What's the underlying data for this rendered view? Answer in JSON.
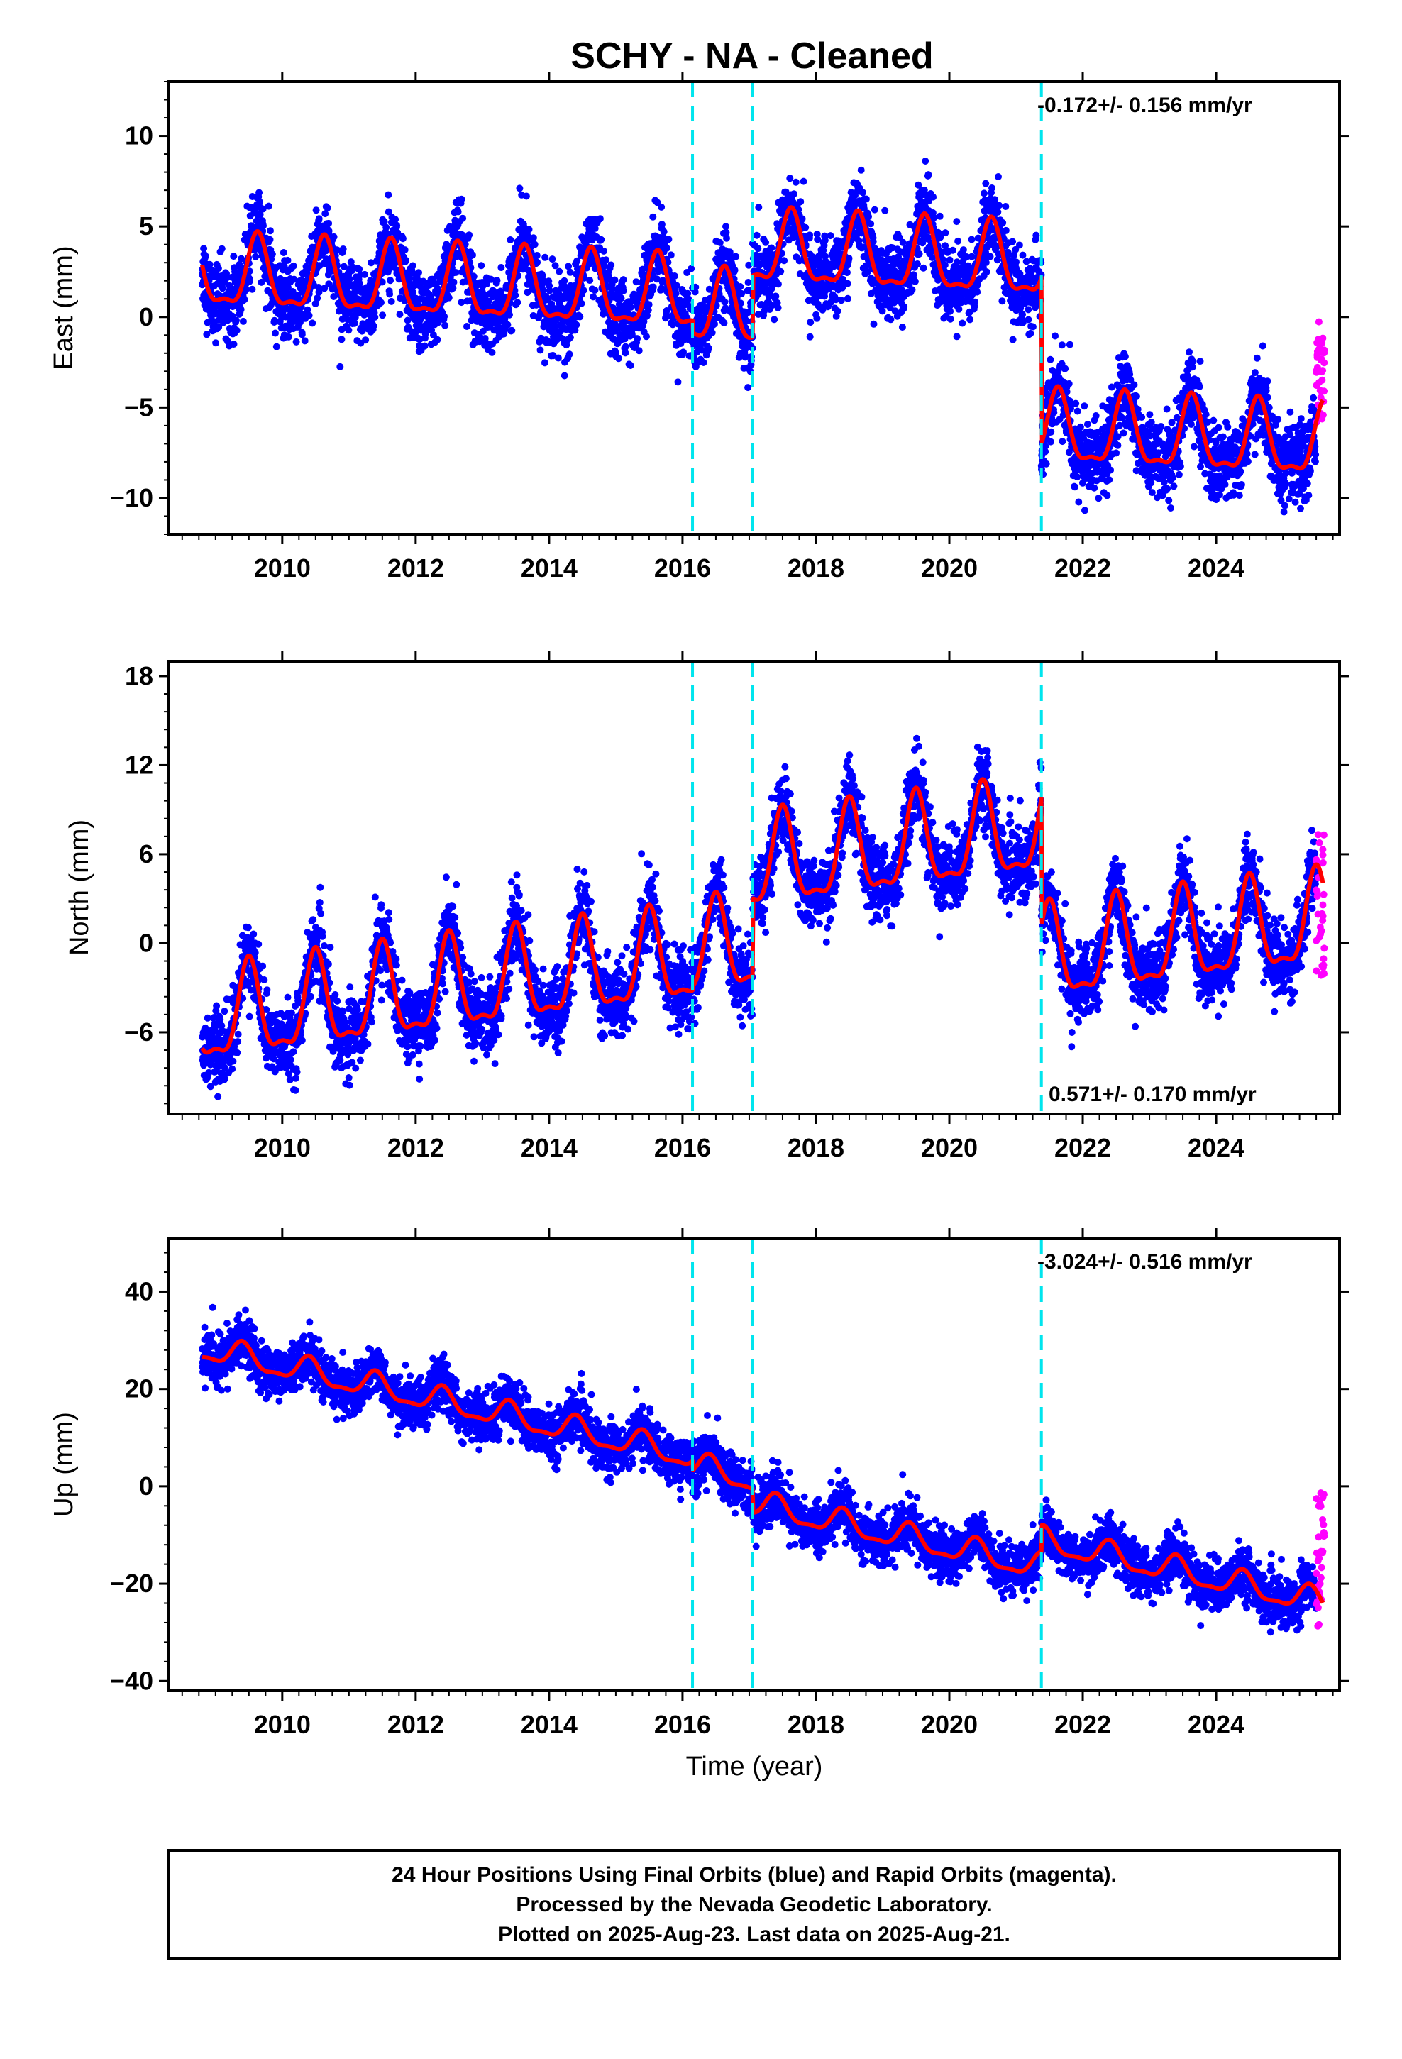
{
  "chart_data": [
    {
      "type": "scatter",
      "title": "SCHY  - NA - Cleaned",
      "xlabel": "",
      "ylabel": "East (mm)",
      "xlim": [
        2008.3,
        2025.85
      ],
      "ylim": [
        -12,
        13
      ],
      "yticks": [
        -10,
        -5,
        0,
        5,
        10
      ],
      "xticks": [
        2010,
        2012,
        2014,
        2016,
        2018,
        2020,
        2022,
        2024
      ],
      "rate_label": "-0.172+/- 0.156 mm/yr",
      "rate_position": "top-right",
      "grid": false,
      "breaks": [
        2016.15,
        2017.05,
        2021.38
      ],
      "trend": {
        "slope": -0.172,
        "ref_year": 2017,
        "amplitude": 1.9,
        "phase_year": 0.63,
        "segments": [
          {
            "start": 2008.8,
            "end": 2016.15,
            "offset": 0.9
          },
          {
            "start": 2016.15,
            "end": 2017.05,
            "offset": 0.2
          },
          {
            "start": 2017.05,
            "end": 2021.38,
            "offset": 3.6
          },
          {
            "start": 2021.38,
            "end": 2025.6,
            "offset": -5.6
          }
        ]
      },
      "scatter_noise": 1.9,
      "rapid": {
        "x_start": 2025.5,
        "x_end": 2025.62,
        "y_min": -6.5,
        "y_max": -0.2
      },
      "series": [
        {
          "name": "Final Orbits",
          "color": "#0000ff"
        },
        {
          "name": "Rapid Orbits",
          "color": "#ff00ff"
        }
      ],
      "fit_color": "#ff0000",
      "break_color": "#00e5ee"
    },
    {
      "type": "scatter",
      "title": "",
      "xlabel": "",
      "ylabel": "North (mm)",
      "xlim": [
        2008.3,
        2025.85
      ],
      "ylim": [
        -11.5,
        19
      ],
      "yticks": [
        -6,
        0,
        6,
        12,
        18
      ],
      "xticks": [
        2010,
        2012,
        2014,
        2016,
        2018,
        2020,
        2022,
        2024
      ],
      "rate_label": "0.571+/- 0.170 mm/yr",
      "rate_position": "bottom-right",
      "grid": false,
      "breaks": [
        2016.15,
        2017.05,
        2021.38
      ],
      "trend": {
        "slope": 0.571,
        "ref_year": 2017,
        "amplitude": 3.0,
        "phase_year": 0.5,
        "segments": [
          {
            "start": 2008.8,
            "end": 2016.15,
            "offset": -0.6
          },
          {
            "start": 2016.15,
            "end": 2017.05,
            "offset": -0.3
          },
          {
            "start": 2017.05,
            "end": 2021.38,
            "offset": 5.0
          },
          {
            "start": 2021.38,
            "end": 2025.6,
            "offset": -3.6
          }
        ]
      },
      "scatter_noise": 2.2,
      "rapid": {
        "x_start": 2025.5,
        "x_end": 2025.62,
        "y_min": -2.3,
        "y_max": 7.4
      },
      "series": [
        {
          "name": "Final Orbits",
          "color": "#0000ff"
        },
        {
          "name": "Rapid Orbits",
          "color": "#ff00ff"
        }
      ],
      "fit_color": "#ff0000",
      "break_color": "#00e5ee"
    },
    {
      "type": "scatter",
      "title": "",
      "xlabel": "Time (year)",
      "ylabel": "Up (mm)",
      "xlim": [
        2008.3,
        2025.85
      ],
      "ylim": [
        -42,
        51
      ],
      "yticks": [
        -40,
        -20,
        0,
        20,
        40
      ],
      "xticks": [
        2010,
        2012,
        2014,
        2016,
        2018,
        2020,
        2022,
        2024
      ],
      "rate_label": "-3.024+/- 0.516 mm/yr",
      "rate_position": "top-right",
      "grid": false,
      "breaks": [
        2016.15,
        2017.05,
        2021.38
      ],
      "trend": {
        "slope": -3.024,
        "ref_year": 2017,
        "amplitude": 2.5,
        "phase_year": 0.4,
        "segments": [
          {
            "start": 2008.8,
            "end": 2016.15,
            "offset": 3.5
          },
          {
            "start": 2016.15,
            "end": 2017.05,
            "offset": 1.5
          },
          {
            "start": 2017.05,
            "end": 2021.38,
            "offset": -3.5
          },
          {
            "start": 2021.38,
            "end": 2025.6,
            "offset": 2.0
          }
        ]
      },
      "scatter_noise": 4.5,
      "rapid": {
        "x_start": 2025.5,
        "x_end": 2025.62,
        "y_min": -30,
        "y_max": 1
      },
      "series": [
        {
          "name": "Final Orbits",
          "color": "#0000ff"
        },
        {
          "name": "Rapid Orbits",
          "color": "#ff00ff"
        }
      ],
      "fit_color": "#ff0000",
      "break_color": "#00e5ee"
    }
  ],
  "caption": {
    "line1": "24 Hour Positions Using Final Orbits (blue) and Rapid Orbits (magenta).",
    "line2": "Processed by the Nevada Geodetic Laboratory.",
    "line3": "Plotted on 2025-Aug-23. Last data on 2025-Aug-21."
  }
}
